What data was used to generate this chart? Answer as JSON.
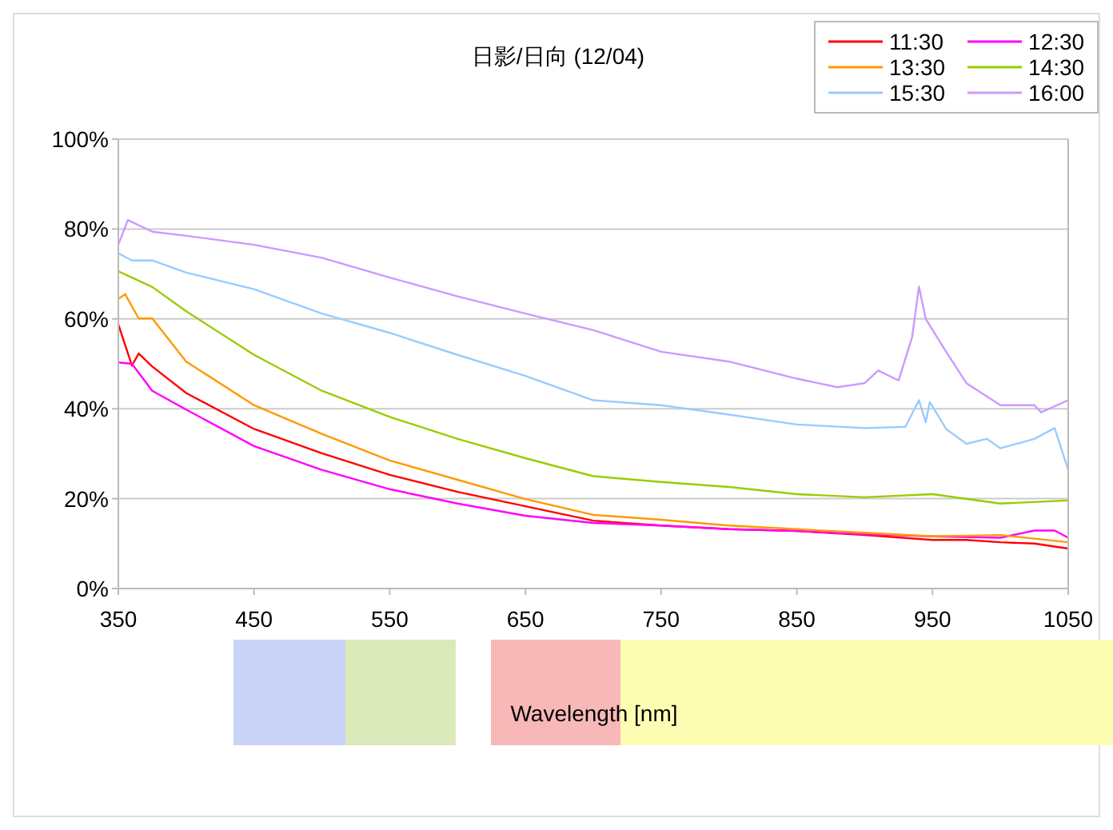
{
  "chart_data": {
    "type": "line",
    "title": "日影/日向  (12/04)",
    "xlabel": "Wavelength [nm]",
    "xlim": [
      350,
      1050
    ],
    "xticks": [
      350,
      450,
      550,
      650,
      750,
      850,
      950,
      1050
    ],
    "ylim": [
      0,
      100
    ],
    "yticks": [
      {
        "value": 0,
        "label": "0%"
      },
      {
        "value": 20,
        "label": "20%"
      },
      {
        "value": 40,
        "label": "40%"
      },
      {
        "value": 60,
        "label": "60%"
      },
      {
        "value": 80,
        "label": "80%"
      },
      {
        "value": 100,
        "label": "100%"
      }
    ],
    "grid": "y",
    "legend": "top right",
    "marker": "none",
    "line_style": "solid",
    "series": [
      {
        "name": "11:30",
        "color": "#ff0000",
        "x": [
          350,
          360,
          365,
          375,
          400,
          450,
          500,
          550,
          600,
          650,
          700,
          750,
          800,
          850,
          900,
          950,
          975,
          1000,
          1025,
          1050
        ],
        "values": [
          58.8,
          49.6,
          52.3,
          49.4,
          43.5,
          35.5,
          30.1,
          25.3,
          21.5,
          18.3,
          15.1,
          14,
          13.2,
          12.8,
          11.9,
          10.8,
          10.8,
          10.3,
          10,
          8.9
        ]
      },
      {
        "name": "12:30",
        "color": "#ff00ff",
        "x": [
          350,
          360,
          375,
          400,
          450,
          500,
          550,
          600,
          650,
          700,
          750,
          800,
          850,
          900,
          950,
          1000,
          1025,
          1040,
          1050
        ],
        "values": [
          50.3,
          50,
          44,
          39.8,
          31.7,
          26.4,
          22.1,
          18.9,
          16.2,
          14.6,
          14,
          13.2,
          12.8,
          12.1,
          11.6,
          11.3,
          12.9,
          12.9,
          11.3
        ]
      },
      {
        "name": "13:30",
        "color": "#ff9900",
        "x": [
          350,
          355,
          365,
          375,
          400,
          450,
          500,
          550,
          600,
          650,
          700,
          750,
          800,
          850,
          900,
          950,
          1000,
          1050
        ],
        "values": [
          64.4,
          65.5,
          60.1,
          60.1,
          50.5,
          40.8,
          34.4,
          28.5,
          24.2,
          19.9,
          16.4,
          15.3,
          14,
          13.2,
          12.4,
          11.6,
          11.9,
          10.3
        ]
      },
      {
        "name": "14:30",
        "color": "#99cc00",
        "x": [
          350,
          360,
          375,
          400,
          450,
          500,
          550,
          600,
          650,
          700,
          750,
          800,
          850,
          900,
          950,
          1000,
          1050
        ],
        "values": [
          70.6,
          69.2,
          67.1,
          61.7,
          52,
          44,
          38.2,
          33.3,
          29,
          25,
          23.7,
          22.6,
          21,
          20.3,
          21,
          18.9,
          19.6
        ]
      },
      {
        "name": "15:30",
        "color": "#99ccff",
        "x": [
          350,
          360,
          375,
          400,
          450,
          500,
          550,
          600,
          650,
          700,
          750,
          800,
          850,
          900,
          930,
          940,
          945,
          948,
          960,
          975,
          990,
          1000,
          1025,
          1040,
          1050
        ],
        "values": [
          74.6,
          73,
          73,
          70.3,
          66.6,
          61.2,
          56.9,
          52,
          47.3,
          41.9,
          40.8,
          38.7,
          36.5,
          35.7,
          36,
          41.9,
          37,
          41.5,
          35.5,
          32.2,
          33.3,
          31.2,
          33.3,
          35.7,
          26.4
        ]
      },
      {
        "name": "16:00",
        "color": "#cc99ff",
        "x": [
          350,
          357,
          375,
          400,
          450,
          500,
          550,
          600,
          650,
          700,
          750,
          800,
          850,
          880,
          900,
          910,
          925,
          935,
          940,
          945,
          960,
          975,
          1000,
          1025,
          1030,
          1050
        ],
        "values": [
          76.5,
          82,
          79.4,
          78.5,
          76.5,
          73.6,
          69.2,
          65,
          61.2,
          57.5,
          52.7,
          50.5,
          46.7,
          44.8,
          45.7,
          48.5,
          46.3,
          56,
          67.2,
          60,
          52.7,
          45.7,
          40.8,
          40.8,
          39.2,
          41.9
        ]
      }
    ]
  }
}
